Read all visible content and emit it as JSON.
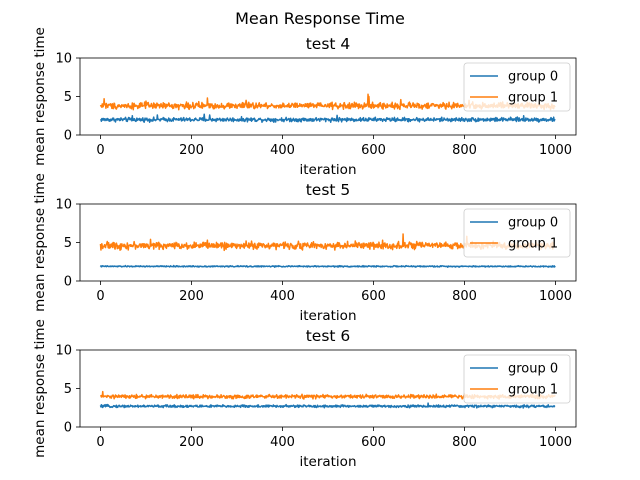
{
  "figure": {
    "title": "Mean Response Time"
  },
  "chart_data": [
    {
      "type": "line",
      "title": "test 4",
      "xlabel": "iteration",
      "ylabel": "mean response time",
      "xlim": [
        -45,
        1045
      ],
      "ylim": [
        0,
        10
      ],
      "xticks": [
        0,
        200,
        400,
        600,
        800,
        1000
      ],
      "yticks": [
        0,
        5,
        10
      ],
      "legend_position": "upper right",
      "series": [
        {
          "name": "group 0",
          "color": "#1f77b4",
          "mean": 2.0,
          "noise": 0.13,
          "spikes": [
            [
              70,
              2.5
            ],
            [
              125,
              2.6
            ],
            [
              228,
              2.7
            ],
            [
              240,
              2.6
            ],
            [
              520,
              2.55
            ],
            [
              930,
              2.5
            ]
          ]
        },
        {
          "name": "group 1",
          "color": "#ff7f0e",
          "mean": 3.8,
          "noise": 0.2,
          "spikes": [
            [
              8,
              4.7
            ],
            [
              100,
              4.4
            ],
            [
              235,
              4.8
            ],
            [
              320,
              4.5
            ],
            [
              588,
              5.3
            ],
            [
              590,
              5.0
            ],
            [
              660,
              4.6
            ],
            [
              810,
              4.5
            ]
          ]
        }
      ]
    },
    {
      "type": "line",
      "title": "test 5",
      "xlabel": "iteration",
      "ylabel": "mean response time",
      "xlim": [
        -45,
        1045
      ],
      "ylim": [
        0,
        10
      ],
      "xticks": [
        0,
        200,
        400,
        600,
        800,
        1000
      ],
      "yticks": [
        0,
        5,
        10
      ],
      "legend_position": "upper right",
      "series": [
        {
          "name": "group 0",
          "color": "#1f77b4",
          "mean": 1.9,
          "noise": 0.04,
          "spikes": []
        },
        {
          "name": "group 1",
          "color": "#ff7f0e",
          "mean": 4.6,
          "noise": 0.22,
          "spikes": [
            [
              110,
              5.4
            ],
            [
              235,
              5.3
            ],
            [
              320,
              5.2
            ],
            [
              560,
              5.2
            ],
            [
              620,
              5.3
            ],
            [
              665,
              6.1
            ],
            [
              805,
              5.8
            ]
          ]
        }
      ]
    },
    {
      "type": "line",
      "title": "test 6",
      "xlabel": "iteration",
      "ylabel": "mean response time",
      "xlim": [
        -45,
        1045
      ],
      "ylim": [
        0,
        10
      ],
      "xticks": [
        0,
        200,
        400,
        600,
        800,
        1000
      ],
      "yticks": [
        0,
        5,
        10
      ],
      "legend_position": "upper right",
      "series": [
        {
          "name": "group 0",
          "color": "#1f77b4",
          "mean": 2.7,
          "noise": 0.08,
          "spikes": [
            [
              720,
              3.1
            ]
          ]
        },
        {
          "name": "group 1",
          "color": "#ff7f0e",
          "mean": 3.95,
          "noise": 0.12,
          "spikes": [
            [
              5,
              4.6
            ],
            [
              210,
              4.2
            ],
            [
              800,
              4.3
            ]
          ]
        }
      ]
    }
  ]
}
